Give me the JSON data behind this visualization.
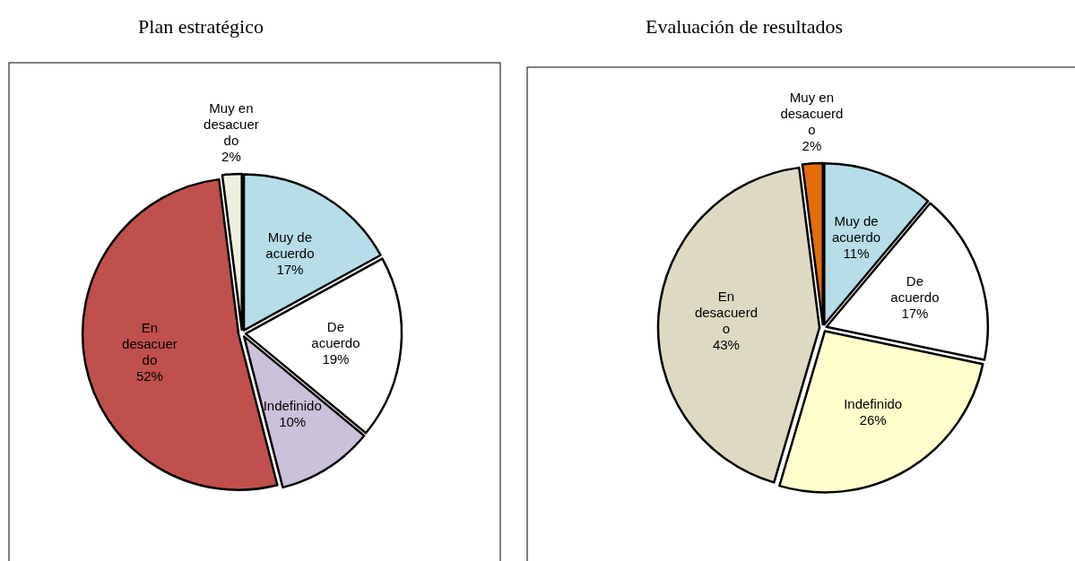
{
  "chart_data": [
    {
      "type": "pie",
      "title": "Plan estratégico",
      "categories": [
        "Muy de acuerdo",
        "De acuerdo",
        "Indefinido",
        "En desacuerdo",
        "Muy en desacuerdo"
      ],
      "values": [
        17,
        19,
        10,
        52,
        2
      ],
      "value_labels": [
        "17%",
        "19%",
        "10%",
        "52%",
        "2%"
      ],
      "colors": [
        "#b7dde8",
        "#ffffff",
        "#ccc1da",
        "#c0504d",
        "#ebf1de"
      ]
    },
    {
      "type": "pie",
      "title": "Evaluación de resultados",
      "categories": [
        "Muy de acuerdo",
        "De acuerdo",
        "Indefinido",
        "En desacuerdo",
        "Muy en desacuerdo"
      ],
      "values": [
        11,
        17,
        26,
        43,
        2
      ],
      "value_labels": [
        "11%",
        "17%",
        "26%",
        "43%",
        "2%"
      ],
      "colors": [
        "#b7dde8",
        "#ffffff",
        "#ffffcc",
        "#ddd9c3",
        "#e36c09"
      ]
    }
  ]
}
